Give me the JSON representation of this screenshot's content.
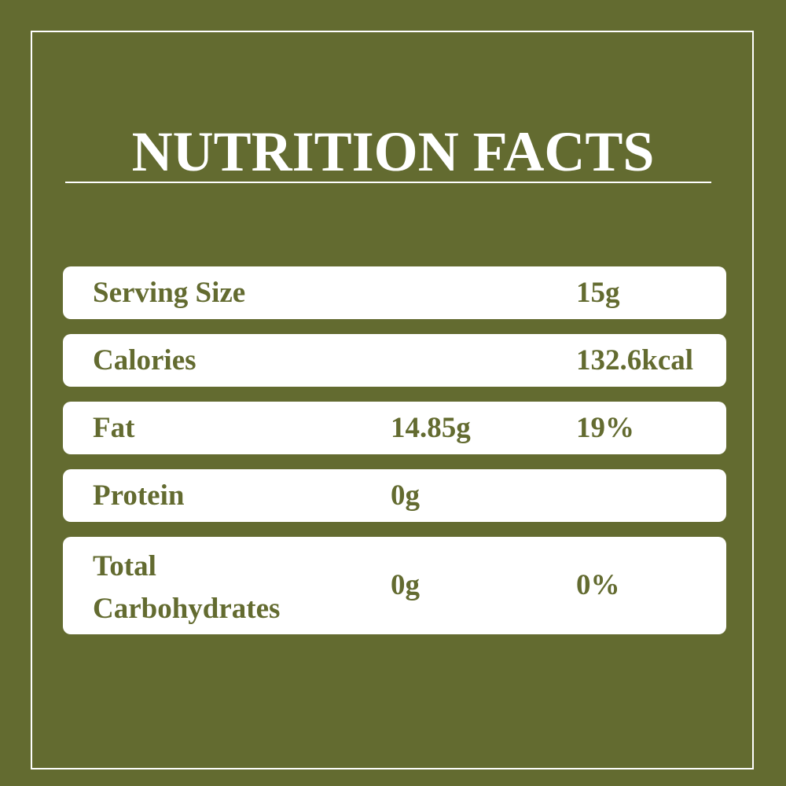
{
  "title": "NUTRITION FACTS",
  "colors": {
    "background": "#636b30",
    "panel": "#ffffff",
    "text_on_panel": "#636b30"
  },
  "rows": [
    {
      "label": "Serving Size",
      "amount": "",
      "value": "15g"
    },
    {
      "label": "Calories",
      "amount": "",
      "value": "132.6kcal"
    },
    {
      "label": "Fat",
      "amount": "14.85g",
      "value": "19%"
    },
    {
      "label": "Protein",
      "amount": "0g",
      "value": ""
    },
    {
      "label": "Total",
      "label2": "Carbohydrates",
      "amount": "0g",
      "value": "0%"
    }
  ]
}
